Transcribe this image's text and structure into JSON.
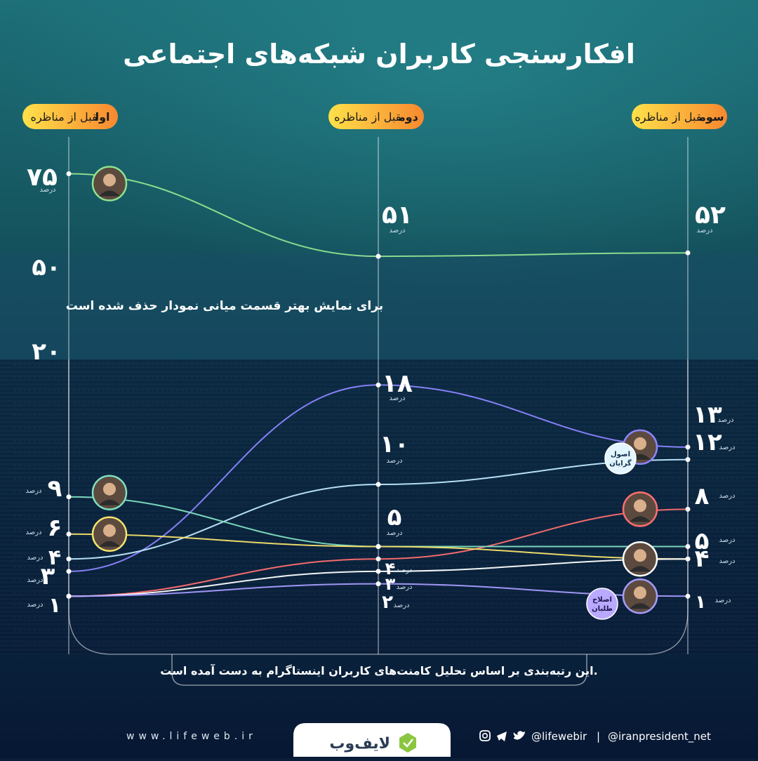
{
  "title": "افکارسنجی کاربران شبکه‌های اجتماعی",
  "columns": [
    {
      "label_prefix": "قبل از مناظره",
      "label_strong": "اول"
    },
    {
      "label_prefix": "قبل از مناظره",
      "label_strong": "دوم"
    },
    {
      "label_prefix": "قبل از مناظره",
      "label_strong": "سوم"
    }
  ],
  "axis": {
    "top_ticks": [
      "۷۵",
      "۵۰"
    ],
    "bottom_tick": "۲۰",
    "unit": "درصد",
    "break_note": "برای نمایش بهتر قسمت میانی نمودار حذف شده است"
  },
  "groups": {
    "principlists": "اصول گرایان",
    "reformists": "اصلاح طلبان"
  },
  "footnote": "این رتبه‌بندی بر اساس تحلیل کامنت‌های کاربران اینستاگرام به دست آمده است.",
  "footer": {
    "website": "www.lifeweb.ir",
    "brand": "لایف‌وب",
    "handle1": "@lifewebir",
    "separator": "|",
    "handle2": "@iranpresident_net"
  },
  "colors": {
    "green": "#8fe38f",
    "purple": "#8c85ff",
    "light": "#bfe9ff",
    "red": "#ff6f6f",
    "teal": "#7fe0c0",
    "yellow": "#f6e36b",
    "white": "#ffffff",
    "violet": "#a99cff",
    "badge_start": "#ffe14a",
    "badge_end": "#f7882f"
  },
  "chart_data": {
    "type": "line",
    "categories": [
      "قبل از مناظره اول",
      "قبل از مناظره دوم",
      "قبل از مناظره سوم"
    ],
    "y_unit": "درصد",
    "y_break": [
      20,
      50
    ],
    "series": [
      {
        "values": [
          75,
          51,
          52
        ],
        "labels": [
          "۷۵",
          "۵۱",
          "۵۲"
        ],
        "color": "green",
        "photo_at": 0
      },
      {
        "values": [
          3,
          18,
          13
        ],
        "labels": [
          "۳",
          "۱۸",
          "۱۳"
        ],
        "color": "purple",
        "photo_at": 2
      },
      {
        "values": [
          4,
          10,
          12
        ],
        "labels": [
          "۴",
          "۱۰",
          "۱۲"
        ],
        "color": "light",
        "group": "principlists"
      },
      {
        "values": [
          1,
          4,
          8
        ],
        "labels": [
          "۱",
          "۴",
          "۸"
        ],
        "color": "red",
        "photo_at": 2
      },
      {
        "values": [
          9,
          5,
          5
        ],
        "labels": [
          "۹",
          "۵",
          "۵"
        ],
        "color": "teal",
        "photo_at": 0
      },
      {
        "values": [
          6,
          5,
          4
        ],
        "labels": [
          "۶",
          "۵",
          "۴"
        ],
        "color": "yellow",
        "photo_at": 0
      },
      {
        "values": [
          1,
          3,
          4
        ],
        "labels": [
          "۱",
          "۳",
          "۴"
        ],
        "color": "white",
        "photo_at": 2
      },
      {
        "values": [
          1,
          2,
          1
        ],
        "labels": [
          "۱",
          "۲",
          "۱"
        ],
        "color": "violet",
        "photo_at": 2,
        "group": "reformists"
      }
    ]
  }
}
